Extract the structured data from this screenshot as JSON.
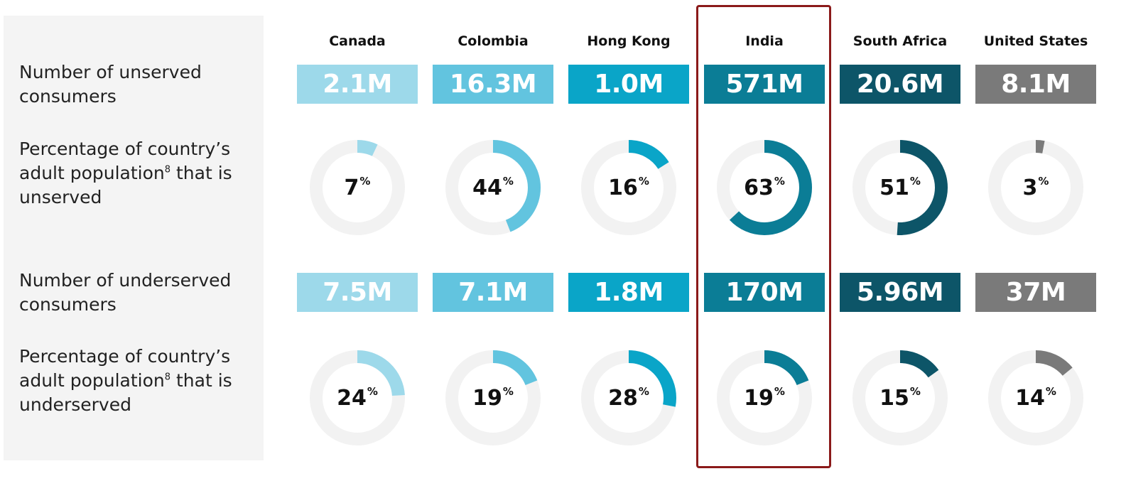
{
  "row_labels": {
    "unserved_count": [
      "Number of unserved",
      "consumers"
    ],
    "unserved_pct": [
      "Percentage of country’s",
      "adult population",
      "8",
      " that is",
      "unserved"
    ],
    "underserved_count": [
      "Number of underserved",
      "consumers"
    ],
    "underserved_pct": [
      "Percentage of country’s",
      "adult population",
      "8",
      " that is",
      "underserved"
    ]
  },
  "highlighted_country": "India",
  "chart_data": {
    "type": "table",
    "countries": [
      "Canada",
      "Colombia",
      "Hong Kong",
      "India",
      "South Africa",
      "United States"
    ],
    "colors": [
      "#9dd9ea",
      "#62c4df",
      "#0aa5c8",
      "#0b7d96",
      "#0d5568",
      "#7a7a7a"
    ],
    "track_color": "#f2f2f2",
    "unserved_consumers": [
      "2.1M",
      "16.3M",
      "1.0M",
      "571M",
      "20.6M",
      "8.1M"
    ],
    "unserved_pct": [
      7,
      44,
      16,
      63,
      51,
      3
    ],
    "underserved_consumers": [
      "7.5M",
      "7.1M",
      "1.8M",
      "170M",
      "5.96M",
      "37M"
    ],
    "underserved_pct": [
      24,
      19,
      28,
      19,
      15,
      14
    ],
    "pct_suffix": "%"
  }
}
